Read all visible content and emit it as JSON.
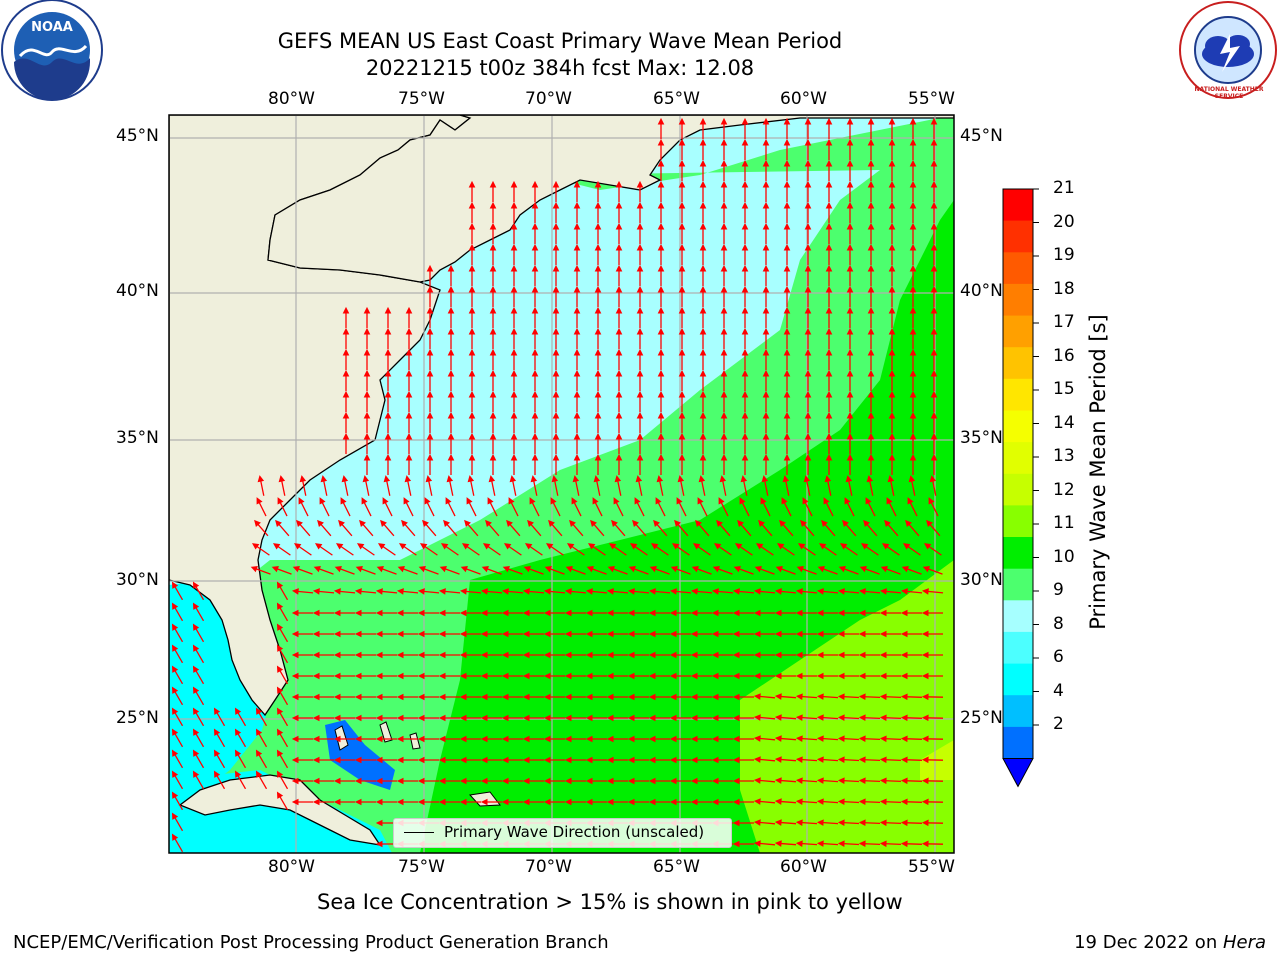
{
  "header": {
    "title_line1": "GEFS MEAN US East Coast Primary Wave Mean Period",
    "title_line2": "20221215 t00z 384h fcst   Max: 12.08"
  },
  "logos": {
    "left": {
      "icon": "noaa-logo-icon",
      "text": "NOAA"
    },
    "right": {
      "icon": "nws-logo-icon",
      "text": "NATIONAL WEATHER SERVICE"
    }
  },
  "axes": {
    "lon_labels": [
      "80°W",
      "75°W",
      "70°W",
      "65°W",
      "60°W",
      "55°W"
    ],
    "lat_labels": [
      "45°N",
      "40°N",
      "35°N",
      "30°N",
      "25°N"
    ]
  },
  "colorbar": {
    "label": "Primary Wave Mean Period [s]",
    "ticks": [
      "21",
      "20",
      "19",
      "18",
      "17",
      "16",
      "15",
      "14",
      "13",
      "12",
      "11",
      "10",
      "9",
      "8",
      "6",
      "4",
      "2"
    ],
    "colors": [
      "#ff0000",
      "#ff3000",
      "#ff5a00",
      "#ff7e00",
      "#ffa000",
      "#ffc300",
      "#ffe600",
      "#f5ff00",
      "#e1ff00",
      "#c6ff00",
      "#88ff00",
      "#00ee00",
      "#4cff6e",
      "#a6ffff",
      "#4cffff",
      "#00ffff",
      "#00bfff",
      "#0070ff"
    ],
    "under_color": "#0000ff"
  },
  "legend": {
    "label": "Primary Wave Direction (unscaled)"
  },
  "map_colors": {
    "land": "#efefdc",
    "cyan_light": "#a8ffff",
    "cyan": "#4cffff",
    "cyan_deep": "#00ffff",
    "green_light": "#4cff6e",
    "green": "#00ee00",
    "green_yellow": "#88ff00",
    "yellow_green": "#c6ff00",
    "blue": "#0070ff",
    "arrow": "#ff0000"
  },
  "footer": {
    "note": "Sea Ice Concentration > 15% is shown in pink to yellow",
    "left": "NCEP/EMC/Verification Post Processing Product Generation Branch",
    "right_prefix": "19 Dec 2022 on ",
    "right_machine": "Hera"
  }
}
